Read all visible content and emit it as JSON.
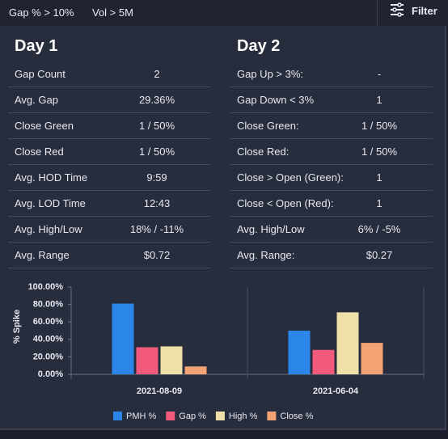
{
  "toolbar": {
    "filters": [
      "Gap % > 10%",
      "Vol > 5M"
    ],
    "button": "Filter"
  },
  "day1": {
    "title": "Day 1",
    "rows": [
      [
        "Gap Count",
        "2"
      ],
      [
        "Avg. Gap",
        "29.36%"
      ],
      [
        "Close Green",
        "1 / 50%"
      ],
      [
        "Close Red",
        "1 / 50%"
      ],
      [
        "Avg. HOD Time",
        "9:59"
      ],
      [
        "Avg. LOD Time",
        "12:43"
      ],
      [
        "Avg. High/Low",
        "18% / -11%"
      ],
      [
        "Avg. Range",
        "$0.72"
      ]
    ]
  },
  "day2": {
    "title": "Day 2",
    "rows": [
      [
        "Gap Up > 3%:",
        "-"
      ],
      [
        "Gap Down < 3%",
        "1"
      ],
      [
        "Close Green:",
        "1 / 50%"
      ],
      [
        "Close Red:",
        "1 / 50%"
      ],
      [
        "Close > Open (Green):",
        "1"
      ],
      [
        "Close < Open (Red):",
        "1"
      ],
      [
        "Avg. High/Low",
        "6% / -5%"
      ],
      [
        "Avg. Range:",
        "$0.27"
      ]
    ]
  },
  "chart_data": {
    "type": "bar",
    "y_label": "% Spike",
    "categories": [
      "2021-08-09",
      "2021-06-04"
    ],
    "series": [
      {
        "name": "PMH %",
        "color": "#2a86e8",
        "values": [
          81,
          50
        ]
      },
      {
        "name": "Gap %",
        "color": "#f25a7c",
        "values": [
          31,
          28
        ]
      },
      {
        "name": "High %",
        "color": "#eee0a8",
        "values": [
          32,
          71
        ]
      },
      {
        "name": "Close %",
        "color": "#f2a273",
        "values": [
          9,
          36
        ]
      }
    ],
    "ylim": [
      0,
      100
    ],
    "yticks": [
      {
        "value": 0,
        "label": "0.00%"
      },
      {
        "value": 20,
        "label": "20.00%"
      },
      {
        "value": 40,
        "label": "40.00%"
      },
      {
        "value": 60,
        "label": "60.00%"
      },
      {
        "value": 80,
        "label": "80.00%"
      },
      {
        "value": 100,
        "label": "100.00%"
      }
    ]
  }
}
